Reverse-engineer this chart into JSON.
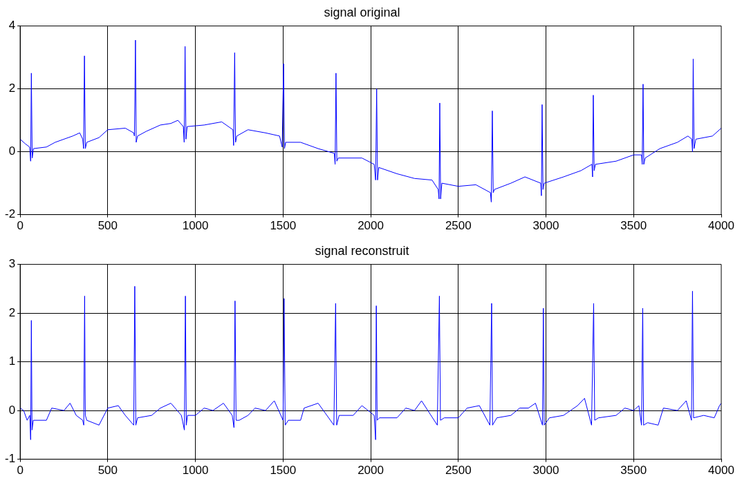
{
  "chart_data": [
    {
      "type": "line",
      "title": "signal original",
      "color": "#0000ff",
      "marker": "none",
      "grid": true,
      "legend": false,
      "xlim": [
        0,
        4000
      ],
      "xticks": [
        0,
        500,
        1000,
        1500,
        2000,
        2500,
        3000,
        3500,
        4000
      ],
      "ylim": [
        -2,
        4
      ],
      "yticks": [
        -2,
        0,
        2,
        4
      ],
      "x": [
        0,
        30,
        54,
        60,
        64,
        69,
        76,
        150,
        200,
        300,
        340,
        357,
        362,
        367,
        372,
        380,
        450,
        500,
        600,
        648,
        652,
        658,
        662,
        670,
        720,
        800,
        860,
        900,
        931,
        936,
        941,
        946,
        953,
        1050,
        1150,
        1214,
        1218,
        1224,
        1229,
        1236,
        1300,
        1400,
        1480,
        1495,
        1503,
        1508,
        1515,
        1600,
        1700,
        1792,
        1797,
        1802,
        1807,
        1815,
        1950,
        2020,
        2028,
        2034,
        2039,
        2046,
        2150,
        2250,
        2350,
        2385,
        2390,
        2394,
        2399,
        2406,
        2500,
        2600,
        2683,
        2688,
        2694,
        2699,
        2706,
        2800,
        2880,
        2970,
        2974,
        2978,
        2983,
        2990,
        3100,
        3200,
        3262,
        3266,
        3270,
        3275,
        3282,
        3400,
        3500,
        3545,
        3549,
        3554,
        3558,
        3566,
        3650,
        3750,
        3810,
        3832,
        3836,
        3840,
        3845,
        3855,
        3950,
        4000
      ],
      "values": [
        0.4,
        0.25,
        0.15,
        -0.3,
        2.5,
        -0.2,
        0.1,
        0.15,
        0.3,
        0.5,
        0.6,
        0.4,
        0.1,
        3.05,
        0.1,
        0.3,
        0.45,
        0.7,
        0.75,
        0.6,
        0.5,
        3.55,
        0.3,
        0.5,
        0.65,
        0.85,
        0.9,
        1.0,
        0.8,
        0.3,
        3.35,
        0.4,
        0.8,
        0.85,
        0.95,
        0.7,
        0.2,
        3.15,
        0.3,
        0.5,
        0.7,
        0.6,
        0.5,
        0.15,
        2.8,
        0.1,
        0.3,
        0.3,
        0.1,
        -0.05,
        -0.4,
        2.5,
        -0.3,
        -0.2,
        -0.2,
        -0.4,
        -0.9,
        2.0,
        -0.9,
        -0.5,
        -0.7,
        -0.85,
        -0.9,
        -1.2,
        -1.5,
        1.55,
        -1.5,
        -1.0,
        -1.1,
        -1.05,
        -1.3,
        -1.6,
        1.3,
        -1.3,
        -1.2,
        -1.0,
        -0.8,
        -1.0,
        -1.4,
        1.5,
        -1.2,
        -1.0,
        -0.8,
        -0.6,
        -0.4,
        -0.8,
        1.8,
        -0.6,
        -0.4,
        -0.3,
        -0.1,
        -0.1,
        -0.4,
        2.15,
        -0.4,
        -0.2,
        0.1,
        0.3,
        0.5,
        0.4,
        0.0,
        2.95,
        0.1,
        0.4,
        0.5,
        0.75
      ]
    },
    {
      "type": "line",
      "title": "signal reconstruit",
      "color": "#0000ff",
      "marker": "none",
      "grid": true,
      "legend": false,
      "xlim": [
        0,
        4000
      ],
      "xticks": [
        0,
        500,
        1000,
        1500,
        2000,
        2500,
        3000,
        3500,
        4000
      ],
      "ylim": [
        -1,
        3
      ],
      "yticks": [
        -1,
        0,
        1,
        2,
        3
      ],
      "x": [
        0,
        20,
        40,
        55,
        60,
        64,
        68,
        75,
        150,
        180,
        250,
        285,
        320,
        357,
        363,
        368,
        372,
        380,
        450,
        500,
        560,
        600,
        648,
        654,
        660,
        670,
        750,
        800,
        860,
        920,
        937,
        943,
        948,
        955,
        1000,
        1050,
        1100,
        1160,
        1210,
        1220,
        1226,
        1232,
        1250,
        1300,
        1340,
        1400,
        1450,
        1500,
        1506,
        1512,
        1530,
        1600,
        1620,
        1700,
        1790,
        1800,
        1806,
        1820,
        1900,
        1950,
        2020,
        2028,
        2032,
        2037,
        2050,
        2150,
        2200,
        2250,
        2290,
        2380,
        2392,
        2398,
        2420,
        2500,
        2550,
        2620,
        2680,
        2690,
        2695,
        2720,
        2800,
        2850,
        2900,
        2940,
        2980,
        2985,
        2990,
        3020,
        3100,
        3180,
        3220,
        3260,
        3272,
        3278,
        3300,
        3400,
        3450,
        3500,
        3530,
        3545,
        3552,
        3557,
        3580,
        3640,
        3670,
        3750,
        3800,
        3830,
        3836,
        3842,
        3900,
        3960,
        3990,
        4000
      ],
      "values": [
        0.05,
        0,
        -0.2,
        -0.1,
        -0.6,
        1.85,
        -0.4,
        -0.2,
        -0.2,
        0.05,
        0,
        0.15,
        -0.1,
        -0.2,
        -0.3,
        2.35,
        -0.1,
        -0.2,
        -0.3,
        0.05,
        0.1,
        -0.1,
        -0.3,
        2.55,
        -0.3,
        -0.15,
        -0.1,
        0.05,
        0.15,
        -0.1,
        -0.4,
        2.35,
        -0.3,
        -0.1,
        -0.1,
        0.05,
        0,
        0.15,
        -0.1,
        -0.35,
        2.25,
        -0.2,
        -0.2,
        -0.1,
        0.05,
        0,
        0.2,
        -0.2,
        2.3,
        -0.3,
        -0.2,
        -0.2,
        0.05,
        0.15,
        -0.3,
        2.2,
        -0.3,
        -0.1,
        -0.1,
        0.1,
        -0.1,
        -0.6,
        2.15,
        -0.2,
        -0.15,
        -0.15,
        0.05,
        0,
        0.2,
        -0.3,
        2.35,
        -0.2,
        -0.15,
        -0.15,
        0.05,
        0.1,
        -0.3,
        2.2,
        -0.3,
        -0.15,
        -0.1,
        0.05,
        0.05,
        0.15,
        -0.3,
        2.1,
        -0.3,
        -0.15,
        -0.1,
        0.1,
        0.25,
        -0.3,
        2.2,
        -0.2,
        -0.15,
        -0.1,
        0.05,
        0,
        0.1,
        -0.3,
        2.1,
        -0.3,
        -0.25,
        -0.3,
        0.05,
        0,
        0.2,
        -0.2,
        2.45,
        -0.15,
        -0.1,
        -0.15,
        0.1,
        0.15
      ]
    }
  ]
}
